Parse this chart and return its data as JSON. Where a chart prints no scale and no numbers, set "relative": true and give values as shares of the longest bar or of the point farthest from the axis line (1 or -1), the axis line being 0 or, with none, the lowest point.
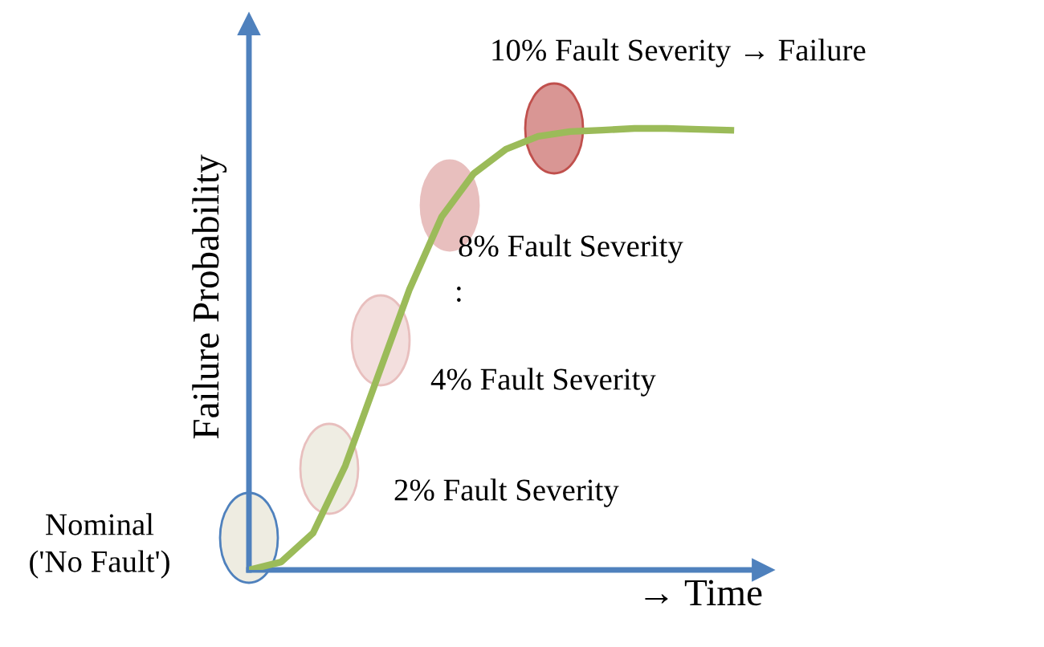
{
  "chart_data": {
    "type": "line",
    "relative": true,
    "xlabel": "→ Time",
    "ylabel": "Failure Probability",
    "categories": [
      null,
      null,
      null,
      null,
      null,
      null,
      null,
      null,
      null,
      null,
      null,
      null,
      null,
      null,
      null,
      null
    ],
    "series": [
      {
        "color": "#9bbb59",
        "values": [
          0,
          0.018,
          0.084,
          0.236,
          0.436,
          0.636,
          0.8,
          0.898,
          0.953,
          0.982,
          0.993,
          0.996,
          1.0,
          1.0,
          0.998,
          0.996
        ]
      }
    ],
    "marker": "none",
    "line_style": "solid",
    "annotations": [
      "10% Fault Severity → Failure",
      "8% Fault Severity",
      ":",
      "4% Fault Severity",
      "2% Fault Severity",
      "Nominal\n('No Fault')"
    ]
  }
}
